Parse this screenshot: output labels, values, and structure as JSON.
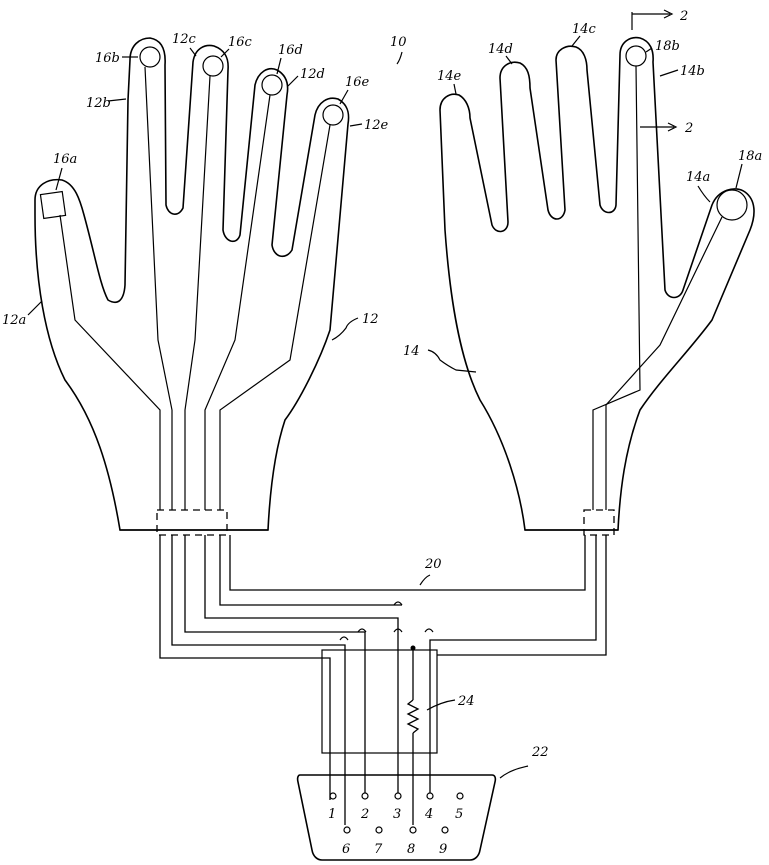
{
  "labels": {
    "fig_ref": "10",
    "left_glove": "12",
    "right_glove": "14",
    "cable": "20",
    "connector": "22",
    "resistor": "24",
    "section_top": "2",
    "section_bottom": "2",
    "left_thumb": "12a",
    "left_index": "12b",
    "left_middle": "12c",
    "left_ring": "12d",
    "left_little": "12e",
    "left_s_thumb": "16a",
    "left_s_index": "16b",
    "left_s_middle": "16c",
    "left_s_ring": "16d",
    "left_s_little": "16e",
    "right_thumb": "14a",
    "right_index": "14b",
    "right_middle": "14c",
    "right_ring": "14d",
    "right_little": "14e",
    "right_s_thumb": "18a",
    "right_s_index": "18b"
  },
  "connector_pins": {
    "top_row": [
      "1",
      "2",
      "3",
      "4",
      "5"
    ],
    "bottom_row": [
      "6",
      "7",
      "8",
      "9"
    ]
  }
}
